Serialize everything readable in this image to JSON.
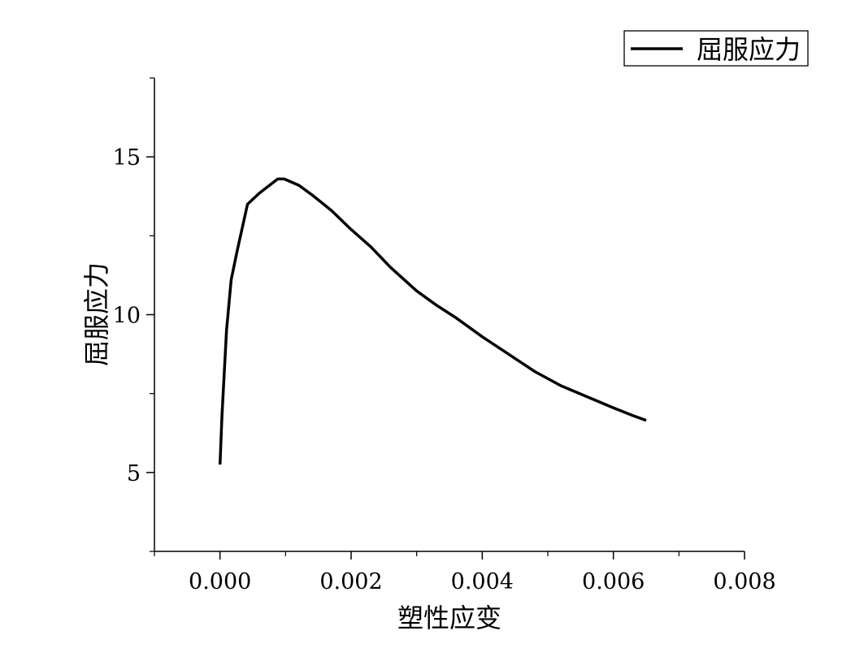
{
  "chart_data": {
    "type": "line",
    "title": "",
    "xlabel": "塑性应变",
    "ylabel": "屈服应力",
    "xlim": [
      -0.001,
      0.008
    ],
    "ylim": [
      2.5,
      17.5
    ],
    "x_ticks": [
      0.0,
      0.002,
      0.004,
      0.006,
      0.008
    ],
    "x_tick_labels": [
      "0.000",
      "0.002",
      "0.004",
      "0.006",
      "0.008"
    ],
    "y_ticks": [
      5,
      10,
      15
    ],
    "y_tick_labels": [
      "5",
      "10",
      "15"
    ],
    "grid": false,
    "legend_position": "top-right",
    "series": [
      {
        "name": "屈服应力",
        "color": "#000000",
        "x": [
          0.0,
          3e-05,
          0.0001,
          0.00017,
          0.00026,
          0.00042,
          0.0006,
          0.00088,
          0.00098,
          0.0012,
          0.0014,
          0.0017,
          0.002,
          0.0023,
          0.0026,
          0.003,
          0.0033,
          0.0036,
          0.004,
          0.0044,
          0.0048,
          0.0052,
          0.0056,
          0.006,
          0.0063,
          0.0065
        ],
        "y": [
          5.25,
          6.8,
          9.5,
          11.1,
          12.0,
          13.5,
          13.85,
          14.3,
          14.3,
          14.1,
          13.8,
          13.3,
          12.7,
          12.15,
          11.5,
          10.75,
          10.3,
          9.9,
          9.3,
          8.75,
          8.2,
          7.75,
          7.4,
          7.05,
          6.8,
          6.65
        ]
      }
    ]
  }
}
